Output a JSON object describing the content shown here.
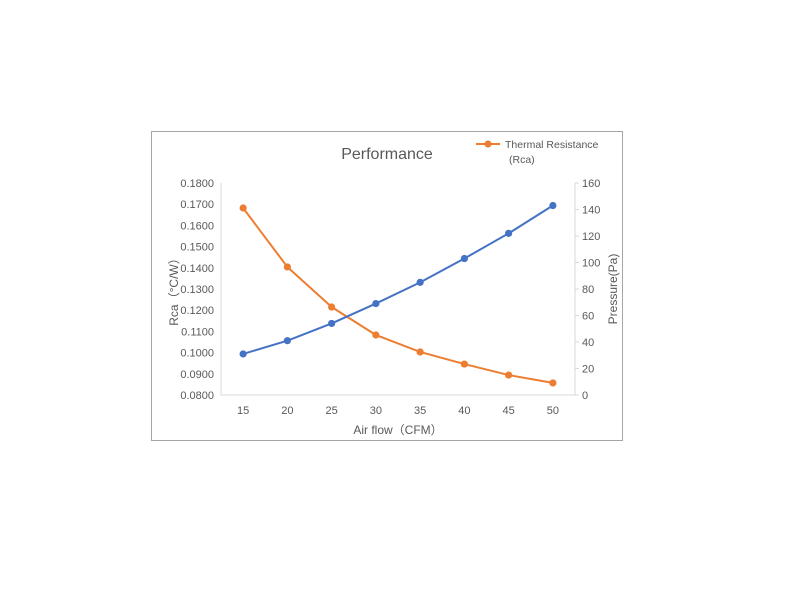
{
  "chart_data": {
    "type": "line",
    "title": "Performance",
    "xlabel": "Air flow（CFM）",
    "ylabel": "Rca（°C/W）",
    "y2label": "Pressure(Pa)",
    "categories": [
      15,
      20,
      25,
      30,
      35,
      40,
      45,
      50
    ],
    "x_tick_labels": [
      "15",
      "20",
      "25",
      "30",
      "35",
      "40",
      "45",
      "50"
    ],
    "ylim": [
      0.08,
      0.18
    ],
    "y_tick_labels": [
      "0.0800",
      "0.0900",
      "0.1000",
      "0.1100",
      "0.1200",
      "0.1300",
      "0.1400",
      "0.1500",
      "0.1600",
      "0.1700",
      "0.1800"
    ],
    "y2lim": [
      0,
      160
    ],
    "y2_tick_labels": [
      "0",
      "20",
      "40",
      "60",
      "80",
      "100",
      "120",
      "140",
      "160"
    ],
    "grid": false,
    "legend_position": "top-right",
    "series": [
      {
        "name": "Thermal Resistance (Rca)",
        "axis": "left",
        "color": "#ED7D31",
        "marker": "circle",
        "values": [
          0.1682,
          0.1404,
          0.1215,
          0.1083,
          0.1003,
          0.0946,
          0.0894,
          0.0857
        ]
      },
      {
        "name": "Pressure",
        "axis": "right",
        "color": "#4472C4",
        "marker": "circle",
        "show_in_legend": false,
        "values": [
          31,
          41,
          54,
          69,
          85,
          103,
          122,
          143
        ]
      }
    ],
    "legend": [
      {
        "label_line1": "Thermal Resistance",
        "label_line2": "(Rca)",
        "color": "#ED7D31"
      }
    ]
  }
}
